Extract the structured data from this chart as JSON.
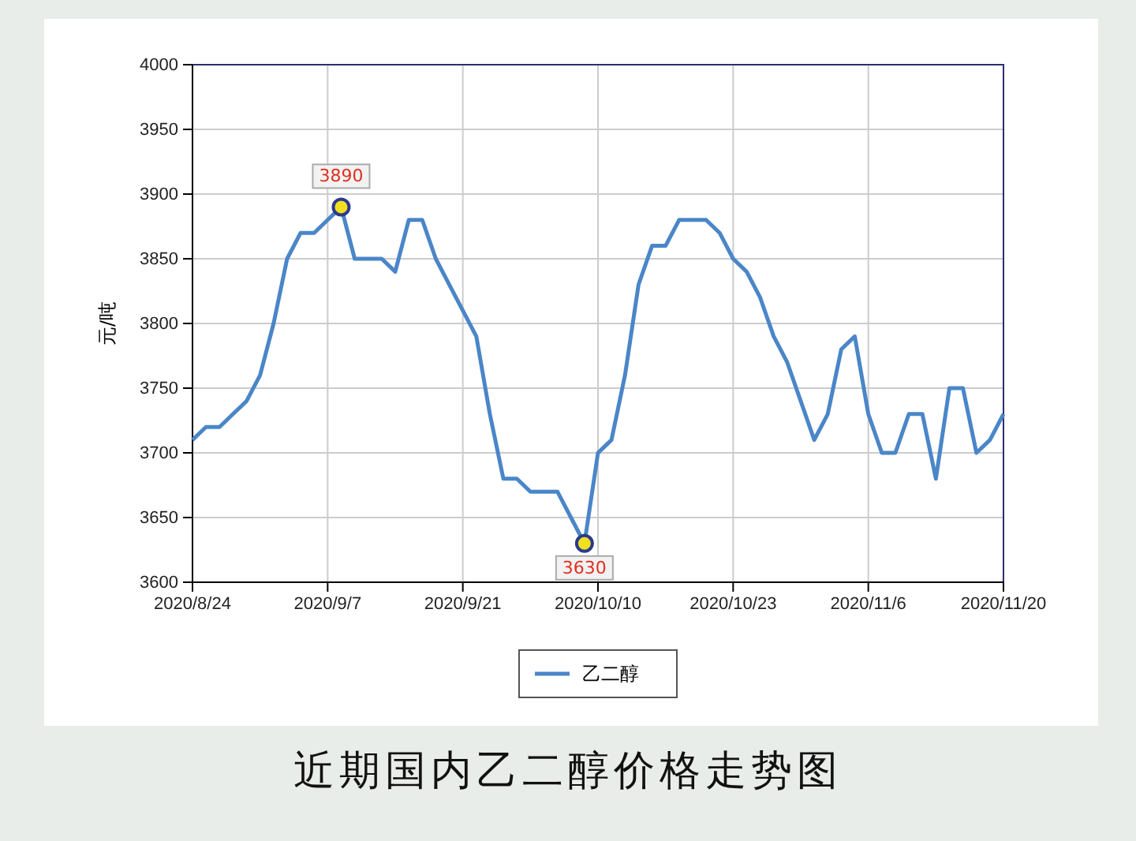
{
  "chart_data": {
    "type": "line",
    "title": "近期国内乙二醇价格走势图",
    "ylabel": "元/吨",
    "categories": [
      "2020/8/24",
      null,
      null,
      null,
      null,
      null,
      null,
      null,
      null,
      null,
      "2020/9/7",
      null,
      null,
      null,
      null,
      null,
      null,
      null,
      null,
      null,
      "2020/9/21",
      null,
      null,
      null,
      null,
      null,
      null,
      null,
      null,
      null,
      "2020/10/10",
      null,
      null,
      null,
      null,
      null,
      null,
      null,
      null,
      null,
      "2020/10/23",
      null,
      null,
      null,
      null,
      null,
      null,
      null,
      null,
      null,
      "2020/11/6",
      null,
      null,
      null,
      null,
      null,
      null,
      null,
      null,
      null,
      "2020/11/20"
    ],
    "series": [
      {
        "name": "乙二醇",
        "color": "#4a86c8",
        "values": [
          3710,
          3720,
          3720,
          3730,
          3740,
          3760,
          3800,
          3850,
          3870,
          3870,
          3880,
          3890,
          3850,
          3850,
          3850,
          3840,
          3880,
          3880,
          3850,
          3830,
          3810,
          3790,
          3730,
          3680,
          3680,
          3670,
          3670,
          3670,
          3650,
          3630,
          3700,
          3710,
          3760,
          3830,
          3860,
          3860,
          3880,
          3880,
          3880,
          3870,
          3850,
          3840,
          3820,
          3790,
          3770,
          3740,
          3710,
          3730,
          3780,
          3790,
          3730,
          3700,
          3700,
          3730,
          3730,
          3680,
          3750,
          3750,
          3700,
          3710,
          3730
        ],
        "value_labels": [
          null,
          null,
          null,
          null,
          null,
          null,
          null,
          null,
          null,
          null,
          null,
          "3890",
          null,
          null,
          null,
          null,
          null,
          null,
          null,
          null,
          null,
          null,
          null,
          null,
          null,
          null,
          null,
          null,
          null,
          "3630",
          null,
          null,
          null,
          null,
          null,
          null,
          null,
          null,
          null,
          null,
          null,
          null,
          null,
          null,
          null,
          null,
          null,
          null,
          null,
          null,
          null,
          null,
          null,
          null,
          null,
          null,
          null,
          null,
          null,
          null,
          null
        ]
      }
    ],
    "ylim": [
      3600,
      4000
    ],
    "yticks": [
      3600,
      3650,
      3700,
      3750,
      3800,
      3850,
      3900,
      3950,
      4000
    ],
    "grid": true,
    "legend": "bottom",
    "marker": "none",
    "line_style": "solid"
  }
}
